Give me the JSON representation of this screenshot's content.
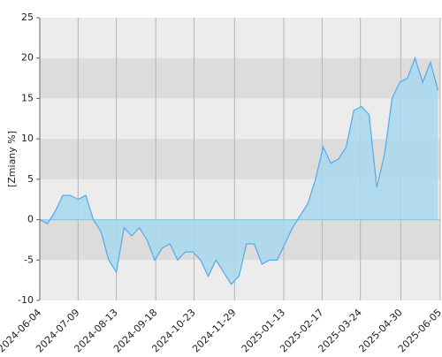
{
  "chart_data": {
    "type": "area",
    "y_label": "[Zmiany %]",
    "x": [
      "2024-06-04",
      "2024-06-11",
      "2024-06-18",
      "2024-06-25",
      "2024-07-02",
      "2024-07-09",
      "2024-07-16",
      "2024-07-23",
      "2024-07-30",
      "2024-08-06",
      "2024-08-13",
      "2024-08-20",
      "2024-08-27",
      "2024-09-03",
      "2024-09-10",
      "2024-09-17",
      "2024-09-24",
      "2024-10-01",
      "2024-10-08",
      "2024-10-15",
      "2024-10-22",
      "2024-10-29",
      "2024-11-05",
      "2024-11-12",
      "2024-11-19",
      "2024-11-26",
      "2024-12-03",
      "2024-12-10",
      "2024-12-17",
      "2024-12-24",
      "2024-12-31",
      "2025-01-07",
      "2025-01-14",
      "2025-01-21",
      "2025-01-28",
      "2025-02-04",
      "2025-02-11",
      "2025-02-18",
      "2025-02-25",
      "2025-03-04",
      "2025-03-11",
      "2025-03-18",
      "2025-03-25",
      "2025-04-01",
      "2025-04-08",
      "2025-04-15",
      "2025-04-22",
      "2025-04-29",
      "2025-05-06",
      "2025-05-13",
      "2025-05-20",
      "2025-05-27",
      "2025-06-03"
    ],
    "values": [
      0,
      -0.5,
      1,
      3,
      3,
      2.5,
      3,
      0,
      -1.5,
      -5,
      -6.5,
      -1,
      -2,
      -1,
      -2.5,
      -5,
      -3.5,
      -3,
      -5,
      -4,
      -4,
      -5,
      -7,
      -5,
      -6.5,
      -8,
      -7,
      -3,
      -3,
      -5.5,
      -5,
      -5,
      -3,
      -1,
      0.5,
      2,
      5,
      9,
      7,
      7.5,
      9,
      13.5,
      14,
      13,
      4,
      8,
      15,
      17,
      17.5,
      20,
      17,
      19.5,
      16
    ],
    "color": "#5aaeea",
    "fill": "#a9d8ee",
    "xlim": [
      "2024-06-04",
      "2025-06-05"
    ],
    "xticks": [
      "2024-06-04",
      "2024-07-09",
      "2024-08-13",
      "2024-09-18",
      "2024-10-23",
      "2024-11-29",
      "2025-01-13",
      "2025-02-17",
      "2025-03-24",
      "2025-04-30",
      "2025-06-05"
    ],
    "ylim": [
      -10,
      25
    ],
    "yticks": [
      -10,
      -5,
      0,
      5,
      10,
      15,
      20,
      25
    ],
    "grid": true
  }
}
